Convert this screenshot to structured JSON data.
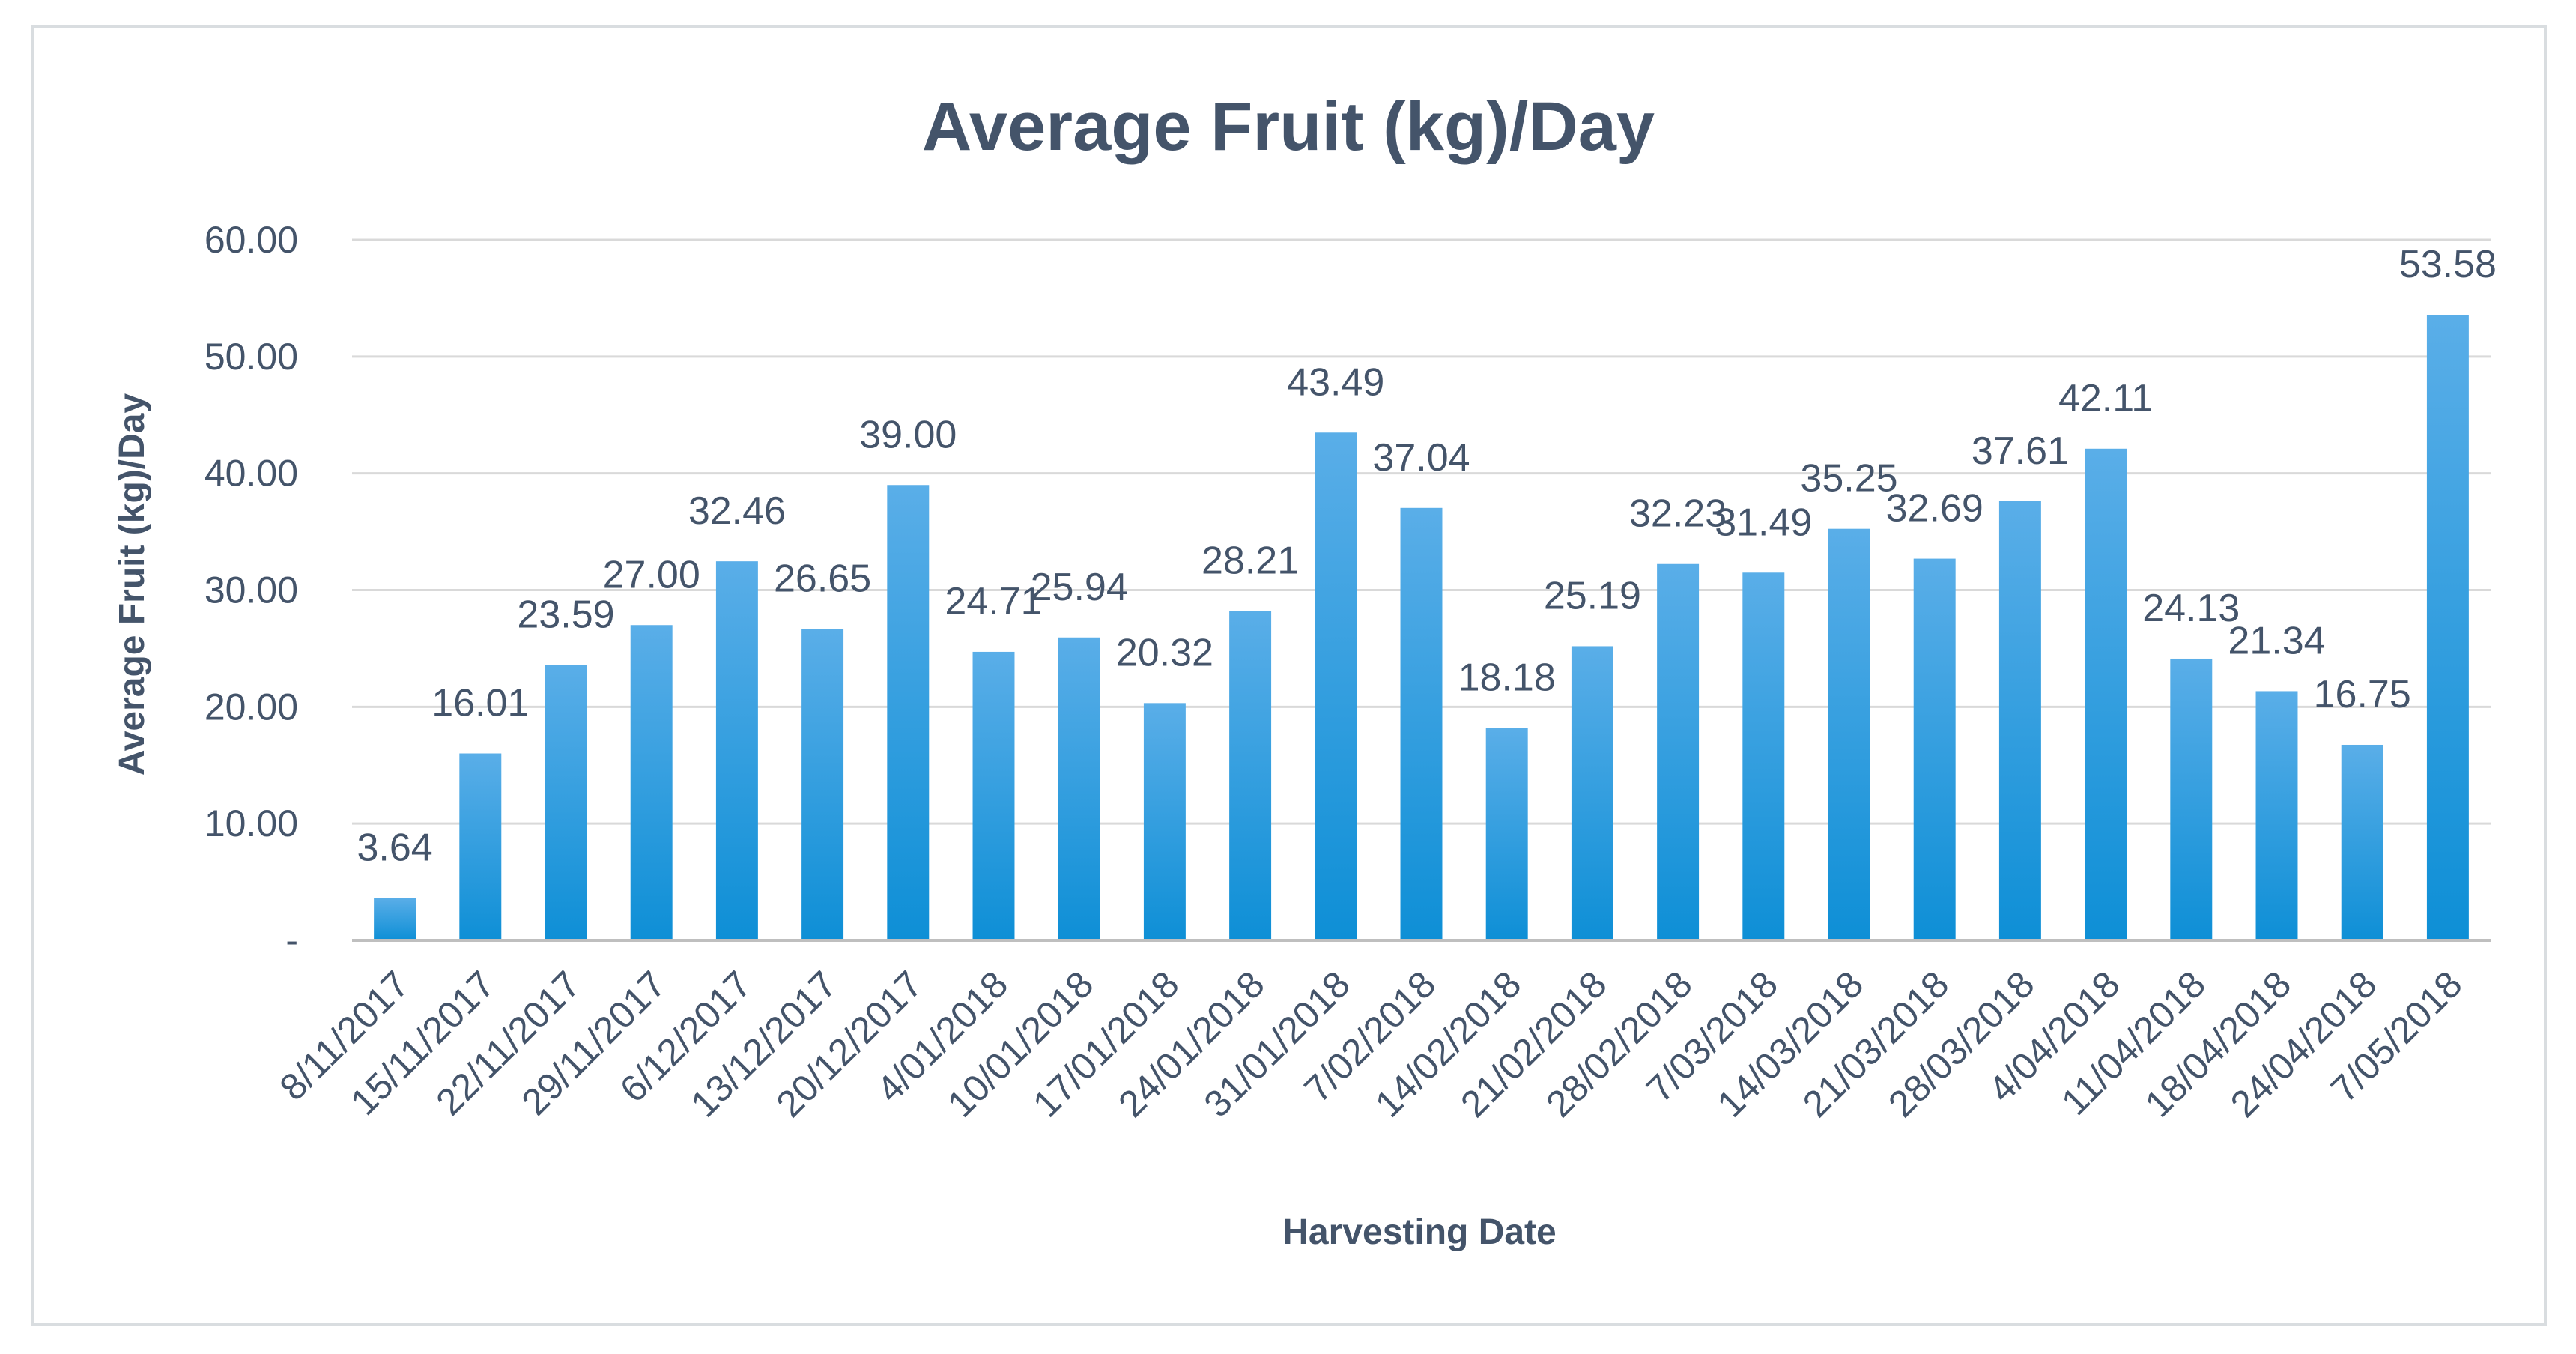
{
  "chart_data": {
    "type": "bar",
    "title": "Average Fruit (kg)/Day",
    "xlabel": "Harvesting Date",
    "ylabel": "Average Fruit (kg)/Day",
    "ylim": [
      0,
      60
    ],
    "yticks": [
      {
        "value": 0,
        "label": "-"
      },
      {
        "value": 10,
        "label": "10.00"
      },
      {
        "value": 20,
        "label": "20.00"
      },
      {
        "value": 30,
        "label": "30.00"
      },
      {
        "value": 40,
        "label": "40.00"
      },
      {
        "value": 50,
        "label": "50.00"
      },
      {
        "value": 60,
        "label": "60.00"
      }
    ],
    "grid": true,
    "legend": "none",
    "categories": [
      "8/11/2017",
      "15/11/2017",
      "22/11/2017",
      "29/11/2017",
      "6/12/2017",
      "13/12/2017",
      "20/12/2017",
      "4/01/2018",
      "10/01/2018",
      "17/01/2018",
      "24/01/2018",
      "31/01/2018",
      "7/02/2018",
      "14/02/2018",
      "21/02/2018",
      "28/02/2018",
      "7/03/2018",
      "14/03/2018",
      "21/03/2018",
      "28/03/2018",
      "4/04/2018",
      "11/04/2018",
      "18/04/2018",
      "24/04/2018",
      "7/05/2018"
    ],
    "values": [
      3.64,
      16.01,
      23.59,
      27.0,
      32.46,
      26.65,
      39.0,
      24.71,
      25.94,
      20.32,
      28.21,
      43.49,
      37.04,
      18.18,
      25.19,
      32.23,
      31.49,
      35.25,
      32.69,
      37.61,
      42.11,
      24.13,
      21.34,
      16.75,
      53.58
    ],
    "data_labels": [
      "3.64",
      "16.01",
      "23.59",
      "27.00",
      "32.46",
      "26.65",
      "39.00",
      "24.71",
      "25.94",
      "20.32",
      "28.21",
      "43.49",
      "37.04",
      "18.18",
      "25.19",
      "32.23",
      "31.49",
      "35.25",
      "32.69",
      "37.61",
      "42.11",
      "24.13",
      "21.34",
      "16.75",
      "53.58"
    ],
    "colors": {
      "bar_top": "#5aaee8",
      "bar_bottom": "#0e8fd6",
      "text": "#44546a",
      "grid": "#d9d9d9"
    }
  }
}
